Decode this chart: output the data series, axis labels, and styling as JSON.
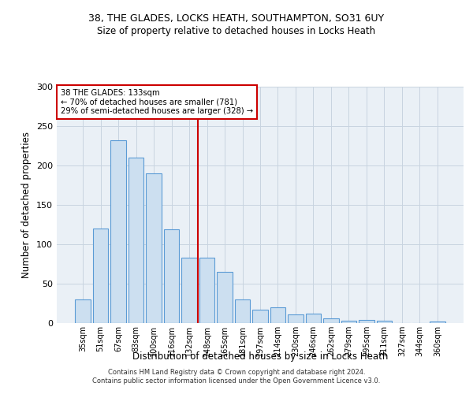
{
  "title_line1": "38, THE GLADES, LOCKS HEATH, SOUTHAMPTON, SO31 6UY",
  "title_line2": "Size of property relative to detached houses in Locks Heath",
  "xlabel": "Distribution of detached houses by size in Locks Heath",
  "ylabel": "Number of detached properties",
  "footer_line1": "Contains HM Land Registry data © Crown copyright and database right 2024.",
  "footer_line2": "Contains public sector information licensed under the Open Government Licence v3.0.",
  "annotation_line1": "38 THE GLADES: 133sqm",
  "annotation_line2": "← 70% of detached houses are smaller (781)",
  "annotation_line3": "29% of semi-detached houses are larger (328) →",
  "bar_edge_color": "#5b9bd5",
  "bar_face_color": "#ccdff0",
  "vline_color": "#cc0000",
  "annotation_box_edge_color": "#cc0000",
  "annotation_box_face_color": "#ffffff",
  "grid_color": "#c8d4e0",
  "background_color": "#eaf0f6",
  "categories": [
    "35sqm",
    "51sqm",
    "67sqm",
    "83sqm",
    "100sqm",
    "116sqm",
    "132sqm",
    "148sqm",
    "165sqm",
    "181sqm",
    "197sqm",
    "214sqm",
    "230sqm",
    "246sqm",
    "262sqm",
    "279sqm",
    "295sqm",
    "311sqm",
    "327sqm",
    "344sqm",
    "360sqm"
  ],
  "values": [
    30,
    120,
    232,
    210,
    190,
    119,
    83,
    83,
    65,
    30,
    17,
    20,
    11,
    12,
    6,
    3,
    4,
    3,
    0,
    0,
    2
  ],
  "ylim": [
    0,
    300
  ],
  "yticks": [
    0,
    50,
    100,
    150,
    200,
    250,
    300
  ],
  "vline_x_index": 6,
  "figsize": [
    6.0,
    5.0
  ],
  "dpi": 100
}
